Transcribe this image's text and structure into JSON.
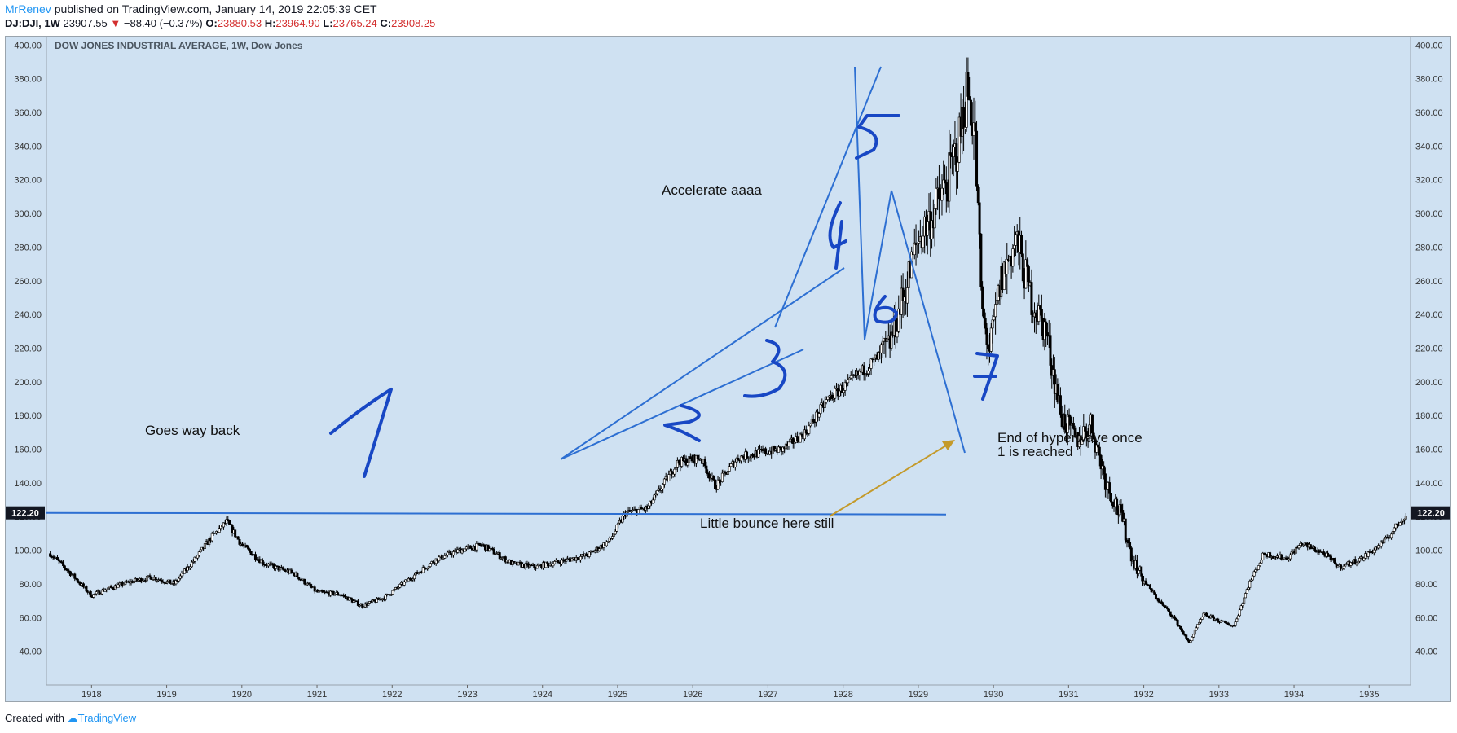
{
  "header": {
    "user": "MrRenev",
    "published_text": "published on TradingView.com, January 14, 2019 22:05:39 CET",
    "symbol": "DJ:DJI, 1W",
    "last_price": "23907.55",
    "change_arrow": "▼",
    "change": "−88.40 (−0.37%)",
    "open_label": "O:",
    "open": "23880.53",
    "high_label": "H:",
    "high": "23964.90",
    "low_label": "L:",
    "low": "23765.24",
    "close_label": "C:",
    "close": "23908.25"
  },
  "footer": {
    "created_with": "Created with",
    "brand": "TradingView"
  },
  "colors": {
    "plot_bg": "#cfe1f2",
    "price_line": "#2d6fd2",
    "ink": "#1847c4",
    "arrow": "#c49a2a",
    "candles": "#000000"
  },
  "chart_data": {
    "type": "candlestick",
    "title": "DOW JONES INDUSTRIAL AVERAGE, 1W, Dow Jones",
    "x_tick_labels": [
      "1918",
      "1919",
      "1920",
      "1921",
      "1922",
      "1923",
      "1924",
      "1925",
      "1926",
      "1927",
      "1928",
      "1929",
      "1930",
      "1931",
      "1932",
      "1933",
      "1934",
      "1935"
    ],
    "y_tick_labels": [
      "40.00",
      "60.00",
      "80.00",
      "100.00",
      "120.00",
      "140.00",
      "160.00",
      "180.00",
      "200.00",
      "220.00",
      "240.00",
      "260.00",
      "280.00",
      "300.00",
      "320.00",
      "340.00",
      "360.00",
      "380.00",
      "400.00"
    ],
    "ylim": [
      20,
      405
    ],
    "xlim": [
      1917.4,
      1935.55
    ],
    "grid": false,
    "price_label": "122.20",
    "price_series": [
      [
        1917.45,
        98
      ],
      [
        1917.75,
        85
      ],
      [
        1918.0,
        73
      ],
      [
        1918.2,
        77
      ],
      [
        1918.5,
        81
      ],
      [
        1918.8,
        84
      ],
      [
        1919.1,
        80
      ],
      [
        1919.4,
        96
      ],
      [
        1919.6,
        108
      ],
      [
        1919.8,
        117
      ],
      [
        1920.0,
        103
      ],
      [
        1920.3,
        92
      ],
      [
        1920.7,
        86
      ],
      [
        1921.0,
        75
      ],
      [
        1921.3,
        74
      ],
      [
        1921.6,
        67
      ],
      [
        1921.9,
        72
      ],
      [
        1922.2,
        82
      ],
      [
        1922.6,
        95
      ],
      [
        1922.9,
        100
      ],
      [
        1923.2,
        103
      ],
      [
        1923.6,
        92
      ],
      [
        1923.9,
        90
      ],
      [
        1924.2,
        93
      ],
      [
        1924.6,
        97
      ],
      [
        1924.9,
        106
      ],
      [
        1925.1,
        122
      ],
      [
        1925.4,
        125
      ],
      [
        1925.8,
        152
      ],
      [
        1926.1,
        155
      ],
      [
        1926.3,
        138
      ],
      [
        1926.6,
        155
      ],
      [
        1926.9,
        158
      ],
      [
        1927.2,
        160
      ],
      [
        1927.5,
        170
      ],
      [
        1927.8,
        190
      ],
      [
        1928.1,
        200
      ],
      [
        1928.4,
        212
      ],
      [
        1928.6,
        220
      ],
      [
        1928.8,
        250
      ],
      [
        1929.0,
        285
      ],
      [
        1929.2,
        300
      ],
      [
        1929.4,
        320
      ],
      [
        1929.55,
        345
      ],
      [
        1929.65,
        375
      ],
      [
        1929.75,
        350
      ],
      [
        1929.85,
        240
      ],
      [
        1929.95,
        218
      ],
      [
        1930.1,
        260
      ],
      [
        1930.3,
        285
      ],
      [
        1930.5,
        250
      ],
      [
        1930.7,
        230
      ],
      [
        1930.9,
        180
      ],
      [
        1931.1,
        165
      ],
      [
        1931.3,
        175
      ],
      [
        1931.5,
        140
      ],
      [
        1931.7,
        120
      ],
      [
        1931.85,
        95
      ],
      [
        1932.0,
        82
      ],
      [
        1932.2,
        70
      ],
      [
        1932.4,
        60
      ],
      [
        1932.6,
        45
      ],
      [
        1932.8,
        62
      ],
      [
        1933.0,
        58
      ],
      [
        1933.2,
        55
      ],
      [
        1933.4,
        80
      ],
      [
        1933.6,
        98
      ],
      [
        1933.9,
        95
      ],
      [
        1934.1,
        104
      ],
      [
        1934.4,
        98
      ],
      [
        1934.6,
        90
      ],
      [
        1934.9,
        95
      ],
      [
        1935.2,
        105
      ],
      [
        1935.5,
        122
      ]
    ],
    "horizontal_level": 122.2,
    "annotations": [
      {
        "text": "Goes way back"
      },
      {
        "text": "Accelerate aaaa"
      },
      {
        "text": "End of hyperwave once"
      },
      {
        "text": "1 is reached"
      },
      {
        "text": "Little bounce here still"
      }
    ],
    "handwritten_labels": [
      "1",
      "2",
      "3",
      "4",
      "5",
      "6",
      "7"
    ]
  }
}
